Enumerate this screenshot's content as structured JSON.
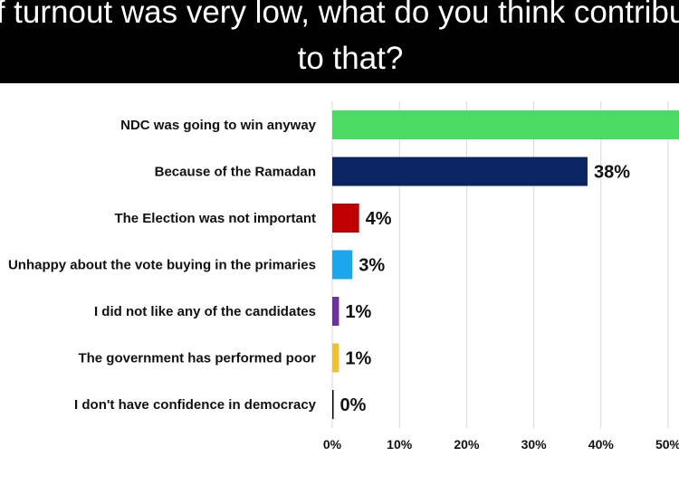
{
  "title_lines": [
    "If turnout was very low, what do you think contributed",
    "to that?"
  ],
  "chart_data": {
    "type": "bar",
    "orientation": "horizontal",
    "categories": [
      "NDC was going to win anyway",
      "Because of the Ramadan",
      "The Election was not important",
      "Unhappy about the vote buying in the primaries",
      "I did not like any of the candidates",
      "The government has performed poor",
      "I don't have confidence in democracy"
    ],
    "values": [
      53,
      38,
      4,
      3,
      1,
      1,
      0
    ],
    "value_labels": [
      "",
      "38%",
      "4%",
      "3%",
      "1%",
      "1%",
      "0%"
    ],
    "colors": [
      "#4cd964",
      "#0b2563",
      "#c00000",
      "#1aa7ec",
      "#7030a0",
      "#f2c12e",
      "#000000"
    ],
    "xticks": [
      "0%",
      "10%",
      "20%",
      "30%",
      "40%",
      "50%"
    ],
    "xlim": [
      0,
      60
    ],
    "grid": true,
    "title": "",
    "xlabel": "",
    "ylabel": ""
  }
}
